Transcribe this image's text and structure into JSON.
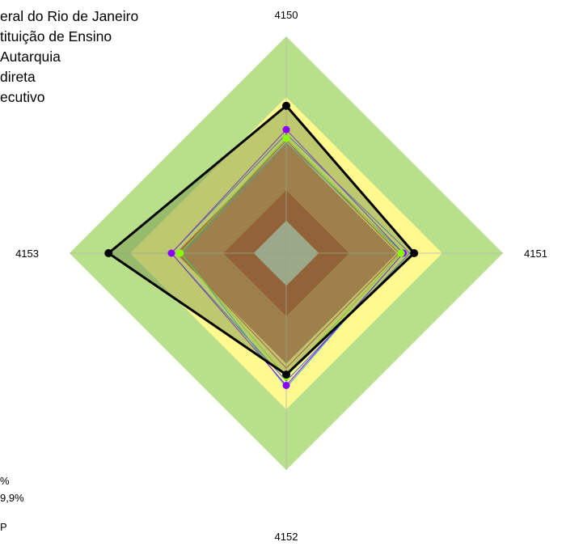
{
  "legend_top": [
    "eral do Rio de Janeiro",
    "tituição de Ensino",
    " Autarquia",
    "direta",
    "ecutivo"
  ],
  "legend_bottom": [
    "%",
    "9,9%",
    "P"
  ],
  "chart_data": {
    "type": "radar",
    "axes": [
      "4150",
      "4151",
      "4152",
      "4153"
    ],
    "scale_max": 100,
    "bands": [
      {
        "from": 0,
        "to": 15,
        "color": "#c0c0c0"
      },
      {
        "from": 15,
        "to": 29,
        "color": "#b0402a"
      },
      {
        "from": 29,
        "to": 51,
        "color": "#c4764f"
      },
      {
        "from": 51,
        "to": 72,
        "color": "#fff98f"
      },
      {
        "from": 72,
        "to": 100,
        "color": "#b8e08a"
      }
    ],
    "series": [
      {
        "color": "#3b6fd0",
        "values": [
          55,
          57,
          59,
          53
        ],
        "fill": false,
        "marker": false
      },
      {
        "color": "#e03030",
        "values": [
          52,
          52,
          53,
          50
        ],
        "fill": false,
        "marker": false
      },
      {
        "color": "#30b0d0",
        "values": [
          51,
          54,
          62,
          48
        ],
        "fill": false,
        "marker": false
      },
      {
        "color": "#8800ff",
        "values": [
          57,
          54,
          61,
          53
        ],
        "fill": false,
        "marker": true
      },
      {
        "color": "#88ff00",
        "values": [
          53,
          53,
          57,
          49
        ],
        "fill": false,
        "marker": true
      },
      {
        "color": "#000000",
        "values": [
          68,
          59,
          56,
          82
        ],
        "fill": true,
        "fill_color": "#6f8f4a",
        "marker": true
      }
    ]
  }
}
